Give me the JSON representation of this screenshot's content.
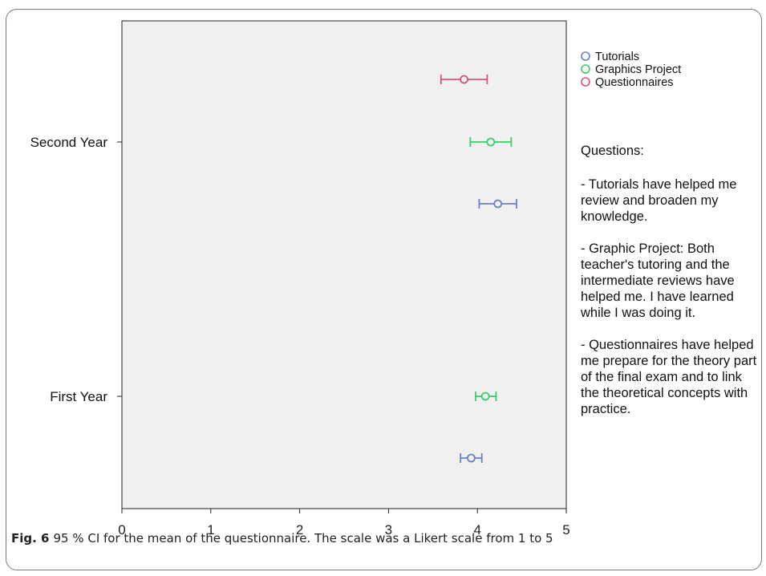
{
  "chart_data": {
    "type": "errorbar",
    "orientation": "horizontal",
    "categories": [
      "Second Year",
      "First Year"
    ],
    "xlim": [
      0,
      5
    ],
    "xticks": [
      0,
      1,
      2,
      3,
      4,
      5
    ],
    "grid": false,
    "legend_position": "top-right",
    "series": [
      {
        "name": "Tutorials",
        "color": "#6b7fc7",
        "points": [
          {
            "category": "Second Year",
            "mean": 4.23,
            "lower": 4.02,
            "upper": 4.44
          },
          {
            "category": "First Year",
            "mean": 3.93,
            "lower": 3.81,
            "upper": 4.05
          }
        ]
      },
      {
        "name": "Graphics Project",
        "color": "#3fcc6a",
        "points": [
          {
            "category": "Second Year",
            "mean": 4.15,
            "lower": 3.92,
            "upper": 4.38
          },
          {
            "category": "First Year",
            "mean": 4.09,
            "lower": 3.98,
            "upper": 4.21
          }
        ]
      },
      {
        "name": "Questionnaires",
        "color": "#d0547f",
        "points": [
          {
            "category": "Second Year",
            "mean": 3.85,
            "lower": 3.59,
            "upper": 4.11
          }
        ]
      }
    ]
  },
  "questions": {
    "title": "Questions:",
    "items": [
      "- Tutorials have helped me review and broaden my knowledge.",
      "- Graphic Project: Both teacher's tutoring and the intermediate reviews have helped me. I have learned while I was doing it.",
      "- Questionnaires have helped me prepare for the theory part of the final exam and to link the theoretical concepts with practice."
    ]
  },
  "caption": {
    "label": "Fig. 6",
    "text": "95 % CI for the mean of the questionnaire. The scale was a Likert scale from 1 to 5"
  }
}
